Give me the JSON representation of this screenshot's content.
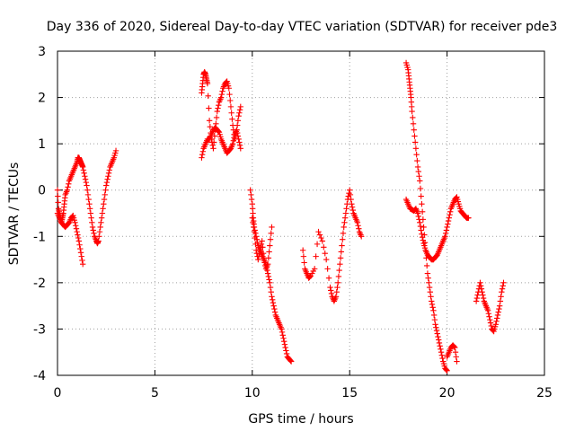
{
  "chart_data": {
    "type": "scatter",
    "title": "Day 336 of 2020, Sidereal Day-to-day VTEC variation (SDTVAR) for receiver pde3",
    "xlabel": "GPS time / hours",
    "ylabel": "SDTVAR / TECUs",
    "xlim": [
      0,
      25
    ],
    "ylim": [
      -4,
      3
    ],
    "xticks": [
      0,
      5,
      10,
      15,
      20,
      25
    ],
    "yticks": [
      -4,
      -3,
      -2,
      -1,
      0,
      1,
      2,
      3
    ],
    "grid": true,
    "marker": "+",
    "color": "#ff0000",
    "series": [
      {
        "name": "seg1",
        "x": [
          0.0,
          0.05,
          0.1,
          0.15,
          0.2,
          0.25,
          0.3,
          0.35,
          0.4,
          0.5,
          0.6,
          0.7,
          0.8,
          0.9,
          1.0,
          1.05,
          1.1,
          1.15,
          1.2,
          1.25,
          1.3,
          1.4,
          1.5,
          1.6,
          1.7,
          1.8,
          1.9,
          2.0,
          2.05,
          2.1,
          2.2,
          2.3,
          2.4,
          2.5,
          2.6,
          2.7,
          2.8,
          2.9,
          3.0
        ],
        "y": [
          0.0,
          -0.4,
          -0.5,
          -0.6,
          -0.7,
          -0.6,
          -0.5,
          -0.3,
          -0.1,
          0.0,
          0.2,
          0.3,
          0.4,
          0.5,
          0.6,
          0.7,
          0.7,
          0.65,
          0.6,
          0.55,
          0.5,
          0.3,
          0.1,
          -0.2,
          -0.5,
          -0.8,
          -1.0,
          -1.1,
          -1.15,
          -1.1,
          -0.8,
          -0.5,
          -0.2,
          0.1,
          0.3,
          0.5,
          0.6,
          0.7,
          0.85
        ]
      },
      {
        "name": "seg1b",
        "x": [
          0.0,
          0.1,
          0.2,
          0.3,
          0.4,
          0.5,
          0.6,
          0.7,
          0.8,
          0.9,
          1.0,
          1.1,
          1.2,
          1.3
        ],
        "y": [
          -0.5,
          -0.6,
          -0.7,
          -0.75,
          -0.8,
          -0.75,
          -0.7,
          -0.6,
          -0.55,
          -0.7,
          -0.9,
          -1.1,
          -1.35,
          -1.6
        ]
      },
      {
        "name": "seg2",
        "x": [
          7.4,
          7.45,
          7.5,
          7.55,
          7.6,
          7.65,
          7.7,
          7.8,
          7.9,
          8.0,
          8.1,
          8.2,
          8.3,
          8.4,
          8.5,
          8.6,
          8.7,
          8.8,
          8.9,
          9.0,
          9.1,
          9.2,
          9.3,
          9.4
        ],
        "y": [
          2.1,
          2.3,
          2.5,
          2.55,
          2.5,
          2.4,
          2.3,
          1.5,
          1.1,
          0.9,
          1.3,
          1.7,
          1.9,
          2.0,
          2.2,
          2.3,
          2.35,
          2.2,
          1.8,
          1.4,
          1.1,
          1.3,
          1.6,
          1.8
        ]
      },
      {
        "name": "seg2b",
        "x": [
          7.4,
          7.5,
          7.6,
          7.7,
          7.8,
          7.9,
          8.0,
          8.1,
          8.2,
          8.3,
          8.4,
          8.5,
          8.6,
          8.7,
          8.8,
          8.9,
          9.0,
          9.1,
          9.2,
          9.3,
          9.4
        ],
        "y": [
          0.7,
          0.9,
          1.0,
          1.1,
          1.1,
          1.2,
          1.3,
          1.35,
          1.3,
          1.25,
          1.1,
          1.0,
          0.9,
          0.8,
          0.85,
          0.9,
          1.0,
          1.2,
          1.3,
          1.1,
          0.9
        ]
      },
      {
        "name": "seg3",
        "x": [
          9.9,
          10.0,
          10.05,
          10.1,
          10.2,
          10.3,
          10.4,
          10.5,
          10.6,
          10.7,
          10.8,
          10.9,
          11.0,
          11.1,
          11.2,
          11.3,
          11.4,
          11.5,
          11.6,
          11.7,
          11.8,
          11.9,
          12.0
        ],
        "y": [
          0.0,
          -0.3,
          -0.6,
          -0.8,
          -1.0,
          -1.2,
          -1.3,
          -1.4,
          -1.5,
          -1.6,
          -1.8,
          -2.0,
          -2.3,
          -2.5,
          -2.7,
          -2.8,
          -2.9,
          -3.0,
          -3.2,
          -3.4,
          -3.6,
          -3.65,
          -3.7
        ]
      },
      {
        "name": "seg3b",
        "x": [
          10.0,
          10.1,
          10.2,
          10.3,
          10.4,
          10.5,
          10.6,
          10.7,
          10.8,
          10.9,
          11.0
        ],
        "y": [
          -0.6,
          -0.9,
          -1.3,
          -1.5,
          -1.3,
          -1.1,
          -1.5,
          -1.7,
          -1.6,
          -1.2,
          -0.8
        ]
      },
      {
        "name": "seg4",
        "x": [
          12.6,
          12.7,
          12.8,
          12.9,
          13.0,
          13.2,
          13.4,
          13.6,
          13.8,
          14.0,
          14.1,
          14.2,
          14.3,
          14.4,
          14.5,
          14.6,
          14.7,
          14.8,
          14.9,
          15.0,
          15.1,
          15.2,
          15.3,
          15.4,
          15.5,
          15.6
        ],
        "y": [
          -1.3,
          -1.7,
          -1.8,
          -1.9,
          -1.85,
          -1.7,
          -0.9,
          -1.1,
          -1.5,
          -2.1,
          -2.3,
          -2.4,
          -2.3,
          -2.0,
          -1.6,
          -1.2,
          -0.8,
          -0.5,
          -0.2,
          0.0,
          -0.3,
          -0.5,
          -0.6,
          -0.7,
          -0.9,
          -1.0
        ]
      },
      {
        "name": "seg5",
        "x": [
          17.9,
          18.0,
          18.05,
          18.1,
          18.15,
          18.2,
          18.3,
          18.4,
          18.5,
          18.6,
          18.7,
          18.8,
          18.9,
          19.0,
          19.1,
          19.2,
          19.3,
          19.4,
          19.5,
          19.6,
          19.7,
          19.8,
          19.9,
          20.0
        ],
        "y": [
          2.75,
          2.6,
          2.4,
          2.2,
          2.0,
          1.7,
          1.3,
          0.9,
          0.5,
          0.2,
          -0.3,
          -0.8,
          -1.3,
          -1.8,
          -2.1,
          -2.4,
          -2.6,
          -2.9,
          -3.1,
          -3.3,
          -3.5,
          -3.7,
          -3.85,
          -3.9
        ]
      },
      {
        "name": "seg5b",
        "x": [
          17.9,
          18.0,
          18.1,
          18.2,
          18.3,
          18.4,
          18.5,
          18.6,
          18.7,
          18.8,
          18.9,
          19.0,
          19.1,
          19.2,
          19.3,
          19.4,
          19.5,
          19.6,
          19.7,
          19.8,
          19.9,
          20.0,
          20.1,
          20.2,
          20.3,
          20.4,
          20.5,
          20.6,
          20.7,
          20.8,
          20.9,
          21.0,
          21.1
        ],
        "y": [
          -0.2,
          -0.3,
          -0.4,
          -0.42,
          -0.45,
          -0.4,
          -0.5,
          -0.7,
          -0.95,
          -1.15,
          -1.3,
          -1.4,
          -1.45,
          -1.5,
          -1.5,
          -1.45,
          -1.4,
          -1.3,
          -1.2,
          -1.1,
          -1.0,
          -0.8,
          -0.6,
          -0.4,
          -0.3,
          -0.2,
          -0.15,
          -0.3,
          -0.45,
          -0.5,
          -0.55,
          -0.6,
          -0.6
        ]
      },
      {
        "name": "seg5c",
        "x": [
          20.0,
          20.1,
          20.2,
          20.3,
          20.4,
          20.5
        ],
        "y": [
          -3.6,
          -3.5,
          -3.4,
          -3.35,
          -3.4,
          -3.7
        ]
      },
      {
        "name": "seg6",
        "x": [
          21.5,
          21.6,
          21.7,
          21.8,
          21.9,
          22.0,
          22.1,
          22.2,
          22.3,
          22.4,
          22.5,
          22.6,
          22.7,
          22.8,
          22.9
        ],
        "y": [
          -2.4,
          -2.2,
          -2.0,
          -2.2,
          -2.4,
          -2.5,
          -2.6,
          -2.8,
          -3.0,
          -3.05,
          -2.9,
          -2.7,
          -2.5,
          -2.2,
          -2.0
        ]
      }
    ]
  }
}
